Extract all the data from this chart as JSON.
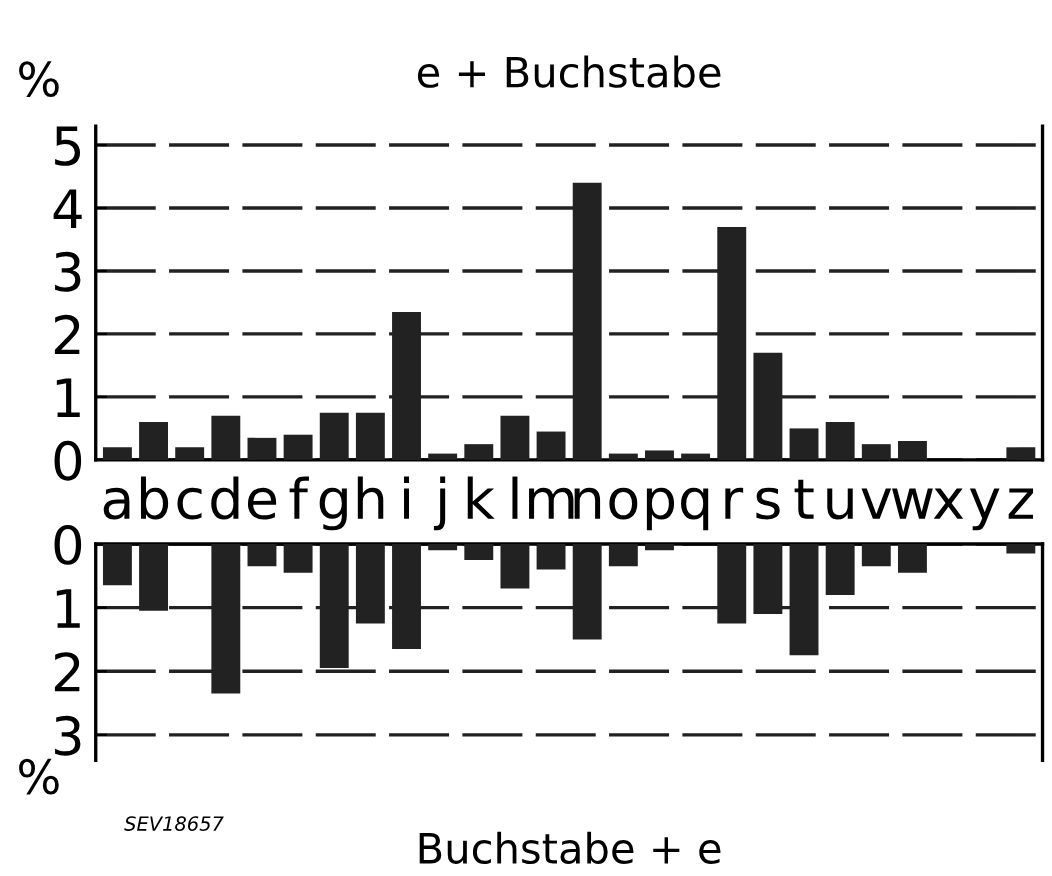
{
  "chart_data": [
    {
      "type": "bar",
      "title": "e + Buchstabe",
      "ylabel": "%",
      "categories": [
        "a",
        "b",
        "c",
        "d",
        "e",
        "f",
        "g",
        "h",
        "i",
        "j",
        "k",
        "l",
        "m",
        "n",
        "o",
        "p",
        "q",
        "r",
        "s",
        "t",
        "u",
        "v",
        "w",
        "x",
        "y",
        "z"
      ],
      "series": [
        {
          "color": "#222222",
          "values": [
            0.2,
            0.6,
            0.2,
            0.7,
            0.35,
            0.4,
            0.75,
            0.75,
            2.35,
            0.1,
            0.25,
            0.7,
            0.45,
            4.4,
            0.1,
            0.15,
            0.1,
            3.7,
            1.7,
            0.5,
            0.6,
            0.25,
            0.3,
            0,
            0,
            0.2
          ]
        }
      ],
      "ylim": [
        0,
        5.3
      ],
      "yticks": [
        0,
        1,
        2,
        3,
        4,
        5
      ],
      "grid": "y"
    },
    {
      "type": "bar",
      "xlabel": "Buchstabe + e",
      "ylabel": "%",
      "annotations": [
        "SEV18657"
      ],
      "tick_labels": "y",
      "categories": [
        null,
        null,
        null,
        null,
        null,
        null,
        null,
        null,
        null,
        null,
        null,
        null,
        null,
        null,
        null,
        null,
        null,
        null,
        null,
        null,
        null,
        null,
        null,
        null,
        null,
        null
      ],
      "series": [
        {
          "color": "#222222",
          "values": [
            0.65,
            1.05,
            0,
            2.35,
            0.35,
            0.45,
            1.95,
            1.25,
            1.65,
            0.1,
            0.25,
            0.7,
            0.4,
            1.5,
            0.35,
            0.1,
            0,
            1.25,
            1.1,
            1.75,
            0.8,
            0.35,
            0.45,
            0,
            0,
            0.15
          ]
        }
      ],
      "ylim": [
        3.4,
        0
      ],
      "yticks": [
        0,
        1,
        2,
        3
      ],
      "grid": "y"
    }
  ]
}
